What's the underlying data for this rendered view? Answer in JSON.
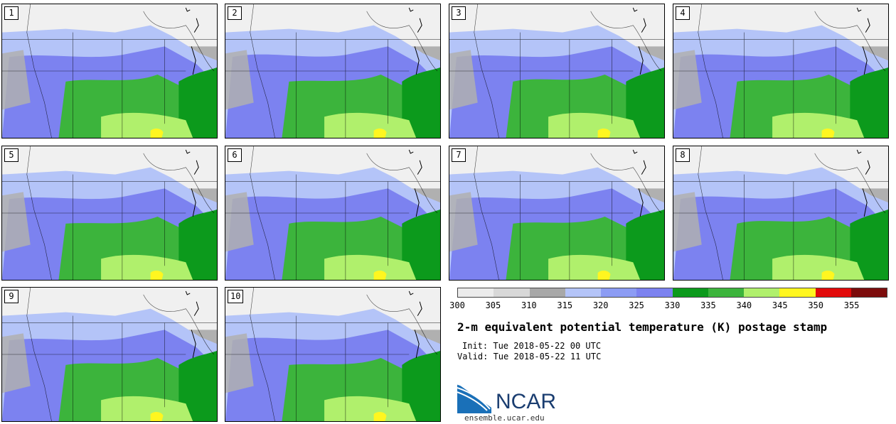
{
  "panels": [
    {
      "label": "1"
    },
    {
      "label": "2"
    },
    {
      "label": "3"
    },
    {
      "label": "4"
    },
    {
      "label": "5"
    },
    {
      "label": "6"
    },
    {
      "label": "7"
    },
    {
      "label": "8"
    },
    {
      "label": "9"
    },
    {
      "label": "10"
    }
  ],
  "colorbar": {
    "colors": [
      "#ececec",
      "#d8d8d8",
      "#a8a8a8",
      "#b4c4f8",
      "#8c9cf4",
      "#7c82f0",
      "#0c9a1c",
      "#3cb43c",
      "#b0f06c",
      "#fff620",
      "#e20a0a",
      "#7c0c0c"
    ],
    "ticks": [
      "300",
      "305",
      "310",
      "315",
      "320",
      "325",
      "330",
      "335",
      "340",
      "345",
      "350",
      "355"
    ]
  },
  "title": "2-m equivalent potential temperature (K) postage stamp",
  "init": "Init: Tue 2018-05-22 00 UTC",
  "valid": "Valid: Tue 2018-05-22 11 UTC",
  "logo": {
    "text": "NCAR",
    "site": "ensemble.ucar.edu"
  },
  "map_colors": {
    "cold_high": "#f0f0f0",
    "cold_mid": "#b0b0b0",
    "cool": "#b4c4f8",
    "mild": "#7c82f0",
    "warm": "#0c9a1c",
    "warmer": "#3cb43c",
    "hot": "#b0f06c",
    "hotter": "#fff620"
  }
}
